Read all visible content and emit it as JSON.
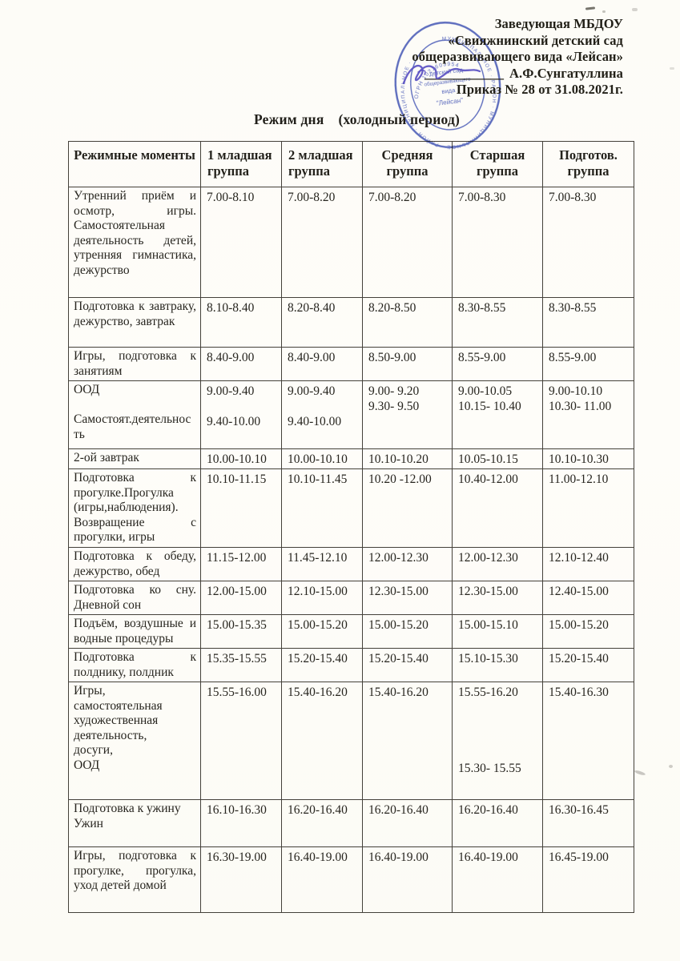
{
  "document": {
    "approval": {
      "lines": [
        "Заведующая МБДОУ",
        "«Свияжнинский  детский сад",
        "общеразвивающего вида «Лейсан»"
      ],
      "signature_line": "____________",
      "signatory": "А.Ф.Сунгатуллина",
      "order_line": "Приказ № 28  от 31.08.2021г."
    },
    "title": "Режим дня",
    "title_period": "(холодный период)",
    "stamp": {
      "color": "#4355ba",
      "ring_text": "МУНИЦИПАЛЬНОЕ ∙ РАЙОН ∙ МУНИЦИПАЛЬНОЕ ∙ РАЙОН ∙ МУНИЦИПАЛЬНОЕ ∙",
      "arc_text": "ОГРН 1021603954",
      "center_lines": [
        "детский сад",
        "общеразвивающего",
        "вида",
        "\"Лейсан\""
      ]
    }
  },
  "table": {
    "headers": [
      "Режимные моменты",
      "1 младшая группа",
      "2 младшая группа",
      "Средняя группа",
      "Старшая группа",
      "Подготов. группа"
    ],
    "rows": [
      {
        "activity": "Утренний приём и осмотр, игры. Самостоятельная деятельность детей, утренняя гимнастика, дежурство",
        "times": [
          "7.00-8.10",
          "7.00-8.20",
          "7.00-8.20",
          "7.00-8.30",
          "7.00-8.30"
        ]
      },
      {
        "activity": "Подготовка к завтраку, дежурство, завтрак",
        "times": [
          "8.10-8.40",
          "8.20-8.40",
          "8.20-8.50",
          "8.30-8.55",
          "8.30-8.55"
        ]
      },
      {
        "activity": "Игры, подготовка к занятиям",
        "times": [
          "8.40-9.00",
          "8.40-9.00",
          "8.50-9.00",
          "8.55-9.00",
          "8.55-9.00"
        ]
      },
      {
        "activity": "ООД\n\nСамостоят.деятельность",
        "times": [
          "9.00-9.40\n\n9.40-10.00",
          "9.00-9.40\n\n9.40-10.00",
          "9.00- 9.20\n9.30- 9.50",
          "9.00-10.05\n10.15- 10.40",
          "9.00-10.10\n10.30- 11.00"
        ]
      },
      {
        "activity": "2-ой завтрак",
        "times": [
          "10.00-10.10",
          "10.00-10.10",
          "10.10-10.20",
          "10.05-10.15",
          "10.10-10.30"
        ]
      },
      {
        "activity": "Подготовка к прогулке.Прогулка (игры,наблюдения). Возвращение с прогулки, игры",
        "times": [
          "10.10-11.15",
          "10.10-11.45",
          "10.20 -12.00",
          "10.40-12.00",
          "11.00-12.10"
        ]
      },
      {
        "activity": "Подготовка к обеду, дежурство, обед",
        "times": [
          "11.15-12.00",
          "11.45-12.10",
          "12.00-12.30",
          "12.00-12.30",
          "12.10-12.40"
        ]
      },
      {
        "activity": "Подготовка ко сну. Дневной сон",
        "times": [
          "12.00-15.00",
          "12.10-15.00",
          "12.30-15.00",
          "12.30-15.00",
          "12.40-15.00"
        ]
      },
      {
        "activity": "Подъём, воздушные и водные процедуры",
        "times": [
          "15.00-15.35",
          "15.00-15.20",
          "15.00-15.20",
          "15.00-15.10",
          "15.00-15.20"
        ]
      },
      {
        "activity": "Подготовка к полднику, полдник",
        "times": [
          "15.35-15.55",
          "15.20-15.40",
          "15.20-15.40",
          "15.10-15.30",
          "15.20-15.40"
        ]
      },
      {
        "activity": "Игры,\nсамостоятельная\nхудожественная\nдеятельность,\nдосуги,\nООД",
        "times": [
          "15.55-16.00",
          "15.40-16.20",
          "15.40-16.20",
          "15.55-16.20\n\n\n\n\n15.30- 15.55",
          "15.40-16.30"
        ]
      },
      {
        "activity": "Подготовка к ужину\nУжин",
        "times": [
          "16.10-16.30",
          "16.20-16.40",
          "16.20-16.40",
          "16.20-16.40",
          "16.30-16.45"
        ]
      },
      {
        "activity": "Игры, подготовка к прогулке, прогулка, уход детей домой",
        "times": [
          "16.30-19.00",
          "16.40-19.00",
          "16.40-19.00",
          "16.40-19.00",
          "16.45-19.00"
        ]
      }
    ]
  }
}
